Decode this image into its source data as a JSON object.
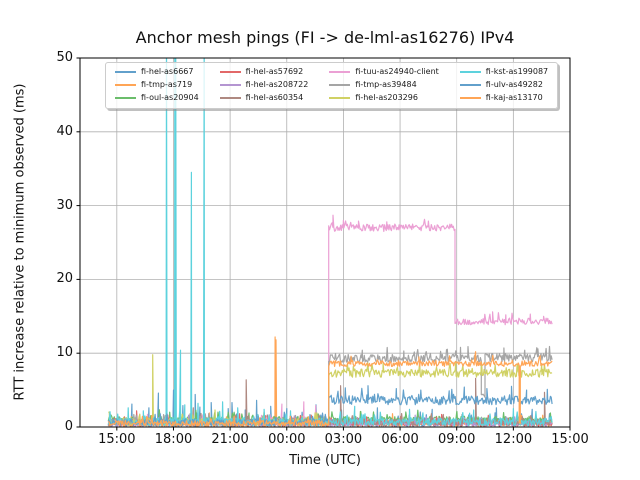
{
  "chart_data": {
    "type": "line",
    "title": "Anchor mesh pings (FI -> de-lml-as16276) IPv4",
    "xlabel": "Time (UTC)",
    "ylabel": "RTT increase relative to minimum observed (ms)",
    "grid": true,
    "legend_position": "upper center inside axes, 4 columns, semi-transparent with shadow",
    "ylim": [
      0,
      50
    ],
    "y_ticks": [
      0,
      10,
      20,
      30,
      40,
      50
    ],
    "xlim_hours": [
      -1.95,
      24.0
    ],
    "x_ticks": [
      {
        "t": 0,
        "label": "15:00"
      },
      {
        "t": 3,
        "label": "18:00"
      },
      {
        "t": 6,
        "label": "21:00"
      },
      {
        "t": 9,
        "label": "00:00"
      },
      {
        "t": 12,
        "label": "03:00"
      },
      {
        "t": 15,
        "label": "06:00"
      },
      {
        "t": 18,
        "label": "09:00"
      },
      {
        "t": 21,
        "label": "12:00"
      },
      {
        "t": 24,
        "label": "15:00"
      }
    ],
    "data_time_range_hours": [
      -0.45,
      23.05
    ],
    "colors": {
      "grid": "#b0b0b0",
      "spine": "#000000",
      "background": "#ffffff"
    },
    "series": [
      {
        "name": "fi-hel-as6667",
        "color": "#62a0cb",
        "segments": [
          [
            -0.45,
            23.05,
            0.65,
            0.5
          ]
        ],
        "spikes": [
          [
            0.8,
            3.1
          ],
          [
            1.7,
            2.6
          ],
          [
            2.2,
            4.6
          ],
          [
            3.0,
            5.0
          ],
          [
            3.5,
            2.9
          ],
          [
            4.15,
            4.4
          ],
          [
            4.4,
            2.7
          ],
          [
            5.0,
            3.3
          ],
          [
            5.9,
            2.5
          ],
          [
            6.1,
            3.3
          ],
          [
            6.8,
            2.3
          ],
          [
            7.4,
            3.6
          ],
          [
            8.15,
            2.8
          ],
          [
            9.0,
            2.5
          ],
          [
            9.9,
            2.4
          ],
          [
            10.55,
            3.0
          ],
          [
            11.9,
            2.3
          ],
          [
            13.8,
            2.6
          ],
          [
            16.7,
            2.4
          ],
          [
            20.1,
            2.6
          ],
          [
            22.0,
            2.4
          ]
        ]
      },
      {
        "name": "fi-tmp-as719",
        "color": "#ffa556",
        "segments": [
          [
            -0.45,
            23.05,
            0.5,
            0.4
          ]
        ],
        "spikes": [
          [
            4.9,
            1.9
          ],
          [
            8.38,
            12.2
          ],
          [
            8.43,
            11.8
          ],
          [
            14.6,
            1.8
          ]
        ]
      },
      {
        "name": "fi-oul-as20904",
        "color": "#6bbd6b",
        "segments": [
          [
            -0.45,
            23.05,
            0.95,
            0.5
          ]
        ],
        "spikes": [
          [
            2.8,
            2.0
          ],
          [
            7.0,
            1.9
          ],
          [
            12.9,
            2.1
          ],
          [
            18.0,
            2.0
          ]
        ]
      },
      {
        "name": "fi-hel-as57692",
        "color": "#e26868",
        "segments": [
          [
            -0.45,
            23.05,
            0.5,
            0.4
          ]
        ],
        "spikes": [
          [
            1.05,
            2.2
          ],
          [
            6.5,
            1.8
          ],
          [
            10.3,
            1.6
          ],
          [
            17.2,
            1.7
          ]
        ]
      },
      {
        "name": "fi-hel-as208722",
        "color": "#b495d1",
        "segments": [
          [
            -0.45,
            23.05,
            0.45,
            0.35
          ]
        ],
        "spikes": [
          [
            3.8,
            1.6
          ],
          [
            9.4,
            1.5
          ],
          [
            15.8,
            1.6
          ]
        ]
      },
      {
        "name": "fi-hel-as60354",
        "color": "#af8981",
        "segments": [
          [
            -0.45,
            23.05,
            0.6,
            0.45
          ]
        ],
        "spikes": [
          [
            4.05,
            2.6
          ],
          [
            6.85,
            6.4
          ],
          [
            11.85,
            5.6
          ],
          [
            19.0,
            6.6
          ],
          [
            22.65,
            4.7
          ]
        ]
      },
      {
        "name": "fi-tuu-as24940-client",
        "color": "#eba0d4",
        "segments": [
          [
            -0.45,
            11.22,
            0.6,
            0.4
          ],
          [
            11.22,
            17.91,
            27.0,
            0.5
          ],
          [
            17.91,
            23.05,
            14.3,
            0.45
          ]
        ],
        "spikes": [
          [
            8.74,
            3.1
          ],
          [
            9.9,
            3.4
          ],
          [
            10.53,
            2.9
          ],
          [
            11.45,
            28.7
          ],
          [
            12.0,
            28.0
          ],
          [
            12.8,
            27.9
          ],
          [
            14.3,
            27.8
          ],
          [
            16.5,
            27.9
          ],
          [
            19.9,
            15.6
          ],
          [
            20.6,
            15.2
          ],
          [
            21.9,
            15.3
          ],
          [
            22.6,
            15.0
          ]
        ]
      },
      {
        "name": "fi-tmp-as39484",
        "color": "#a5a5a5",
        "segments": [
          [
            -0.45,
            11.22,
            0.6,
            0.45
          ],
          [
            11.22,
            19.3,
            9.3,
            0.55
          ],
          [
            19.3,
            19.5,
            4.3,
            0.5
          ],
          [
            19.5,
            23.05,
            9.4,
            0.55
          ]
        ],
        "spikes": [
          [
            13.0,
            10.4
          ],
          [
            15.2,
            10.3
          ],
          [
            18.2,
            10.8
          ],
          [
            18.6,
            10.9
          ],
          [
            20.5,
            10.7
          ],
          [
            21.6,
            10.4
          ],
          [
            22.3,
            10.6
          ]
        ]
      },
      {
        "name": "fi-hel-as203296",
        "color": "#d0d164",
        "segments": [
          [
            -0.45,
            11.22,
            0.7,
            0.5
          ],
          [
            11.22,
            23.05,
            7.3,
            0.55
          ]
        ],
        "spikes": [
          [
            1.9,
            9.8
          ],
          [
            5.2,
            2.3
          ],
          [
            14.1,
            8.6
          ],
          [
            17.95,
            8.9
          ],
          [
            21.2,
            8.5
          ],
          [
            22.5,
            8.4
          ]
        ]
      },
      {
        "name": "fi-kst-as199087",
        "color": "#5dd2dd",
        "segments": [
          [
            -0.45,
            23.05,
            0.7,
            0.55
          ]
        ],
        "spikes": [
          [
            0.6,
            2.6
          ],
          [
            1.4,
            2.2
          ],
          [
            2.63,
            55
          ],
          [
            3.07,
            55
          ],
          [
            3.12,
            55
          ],
          [
            3.37,
            10.4
          ],
          [
            3.6,
            3.0
          ],
          [
            3.95,
            34.5
          ],
          [
            4.3,
            3.2
          ],
          [
            4.63,
            55
          ],
          [
            5.6,
            3.4
          ],
          [
            6.4,
            2.6
          ],
          [
            7.8,
            2.4
          ],
          [
            9.2,
            2.2
          ],
          [
            12.6,
            2.8
          ],
          [
            15.5,
            2.4
          ],
          [
            18.9,
            2.3
          ],
          [
            21.0,
            2.5
          ]
        ]
      },
      {
        "name": "fi-ulv-as49282",
        "color": "#62a0cb",
        "segments": [
          [
            -0.45,
            11.22,
            0.6,
            0.45
          ],
          [
            11.22,
            23.05,
            3.6,
            0.6
          ]
        ],
        "spikes": [
          [
            12.1,
            5.3
          ],
          [
            13.3,
            5.6
          ],
          [
            14.8,
            5.2
          ],
          [
            16.1,
            5.0
          ],
          [
            17.6,
            4.9
          ],
          [
            18.4,
            5.4
          ],
          [
            19.6,
            5.2
          ],
          [
            20.9,
            5.5
          ],
          [
            21.7,
            5.0
          ],
          [
            22.8,
            5.1
          ]
        ]
      },
      {
        "name": "fi-kaj-as13170",
        "color": "#ffa556",
        "segments": [
          [
            -0.45,
            11.22,
            0.5,
            0.4
          ],
          [
            11.22,
            21.31,
            8.6,
            0.4
          ],
          [
            21.31,
            21.37,
            0.7,
            0.3
          ],
          [
            21.37,
            23.05,
            8.6,
            0.4
          ]
        ],
        "spikes": [
          [
            12.4,
            9.6
          ],
          [
            16.0,
            9.5
          ],
          [
            19.0,
            10.2
          ],
          [
            22.4,
            9.4
          ]
        ]
      }
    ]
  }
}
